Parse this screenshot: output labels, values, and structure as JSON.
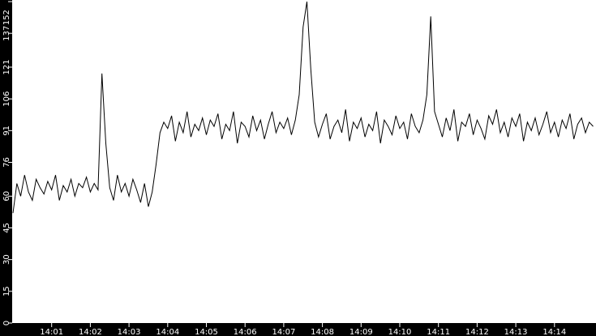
{
  "chart_data": {
    "type": "line",
    "title": "",
    "xlabel": "",
    "ylabel": "",
    "x_start": "14:00:00",
    "step_seconds": 6,
    "xlim": [
      "14:00:00",
      "14:15:06"
    ],
    "ylim": [
      0,
      152
    ],
    "grid": false,
    "y_ticks": [
      "0",
      "15",
      "30",
      "45",
      "60",
      "76",
      "91",
      "106",
      "121",
      "137",
      "152"
    ],
    "x_ticks": [
      "14:01",
      "14:02",
      "14:03",
      "14:04",
      "14:05",
      "14:06",
      "14:07",
      "14:08",
      "14:09",
      "14:10",
      "14:11",
      "14:12",
      "14:13",
      "14:14"
    ],
    "colors": {
      "background": "#000000",
      "plot": "#ffffff",
      "line": "#000000",
      "axis_text": "#ffffff"
    },
    "series": [
      {
        "values": [
          52,
          66,
          60,
          70,
          62,
          58,
          68,
          64,
          61,
          67,
          63,
          70,
          58,
          65,
          62,
          68,
          60,
          66,
          64,
          69,
          62,
          66,
          63,
          118,
          85,
          64,
          58,
          70,
          62,
          66,
          60,
          68,
          63,
          57,
          66,
          55,
          62,
          75,
          90,
          95,
          92,
          98,
          86,
          95,
          90,
          100,
          88,
          94,
          91,
          97,
          89,
          96,
          93,
          99,
          87,
          94,
          91,
          100,
          85,
          95,
          93,
          88,
          98,
          91,
          96,
          87,
          94,
          100,
          90,
          95,
          92,
          97,
          89,
          96,
          108,
          140,
          152,
          120,
          95,
          88,
          94,
          99,
          87,
          93,
          96,
          90,
          101,
          86,
          95,
          92,
          97,
          88,
          94,
          91,
          100,
          85,
          96,
          93,
          89,
          98,
          92,
          95,
          87,
          99,
          93,
          90,
          96,
          108,
          145,
          100,
          94,
          88,
          97,
          91,
          101,
          86,
          95,
          93,
          99,
          89,
          96,
          92,
          87,
          98,
          94,
          101,
          90,
          95,
          88,
          97,
          93,
          99,
          86,
          95,
          91,
          97,
          89,
          94,
          100,
          90,
          95,
          88,
          96,
          92,
          99,
          87,
          94,
          97,
          90,
          95,
          93
        ]
      }
    ]
  }
}
